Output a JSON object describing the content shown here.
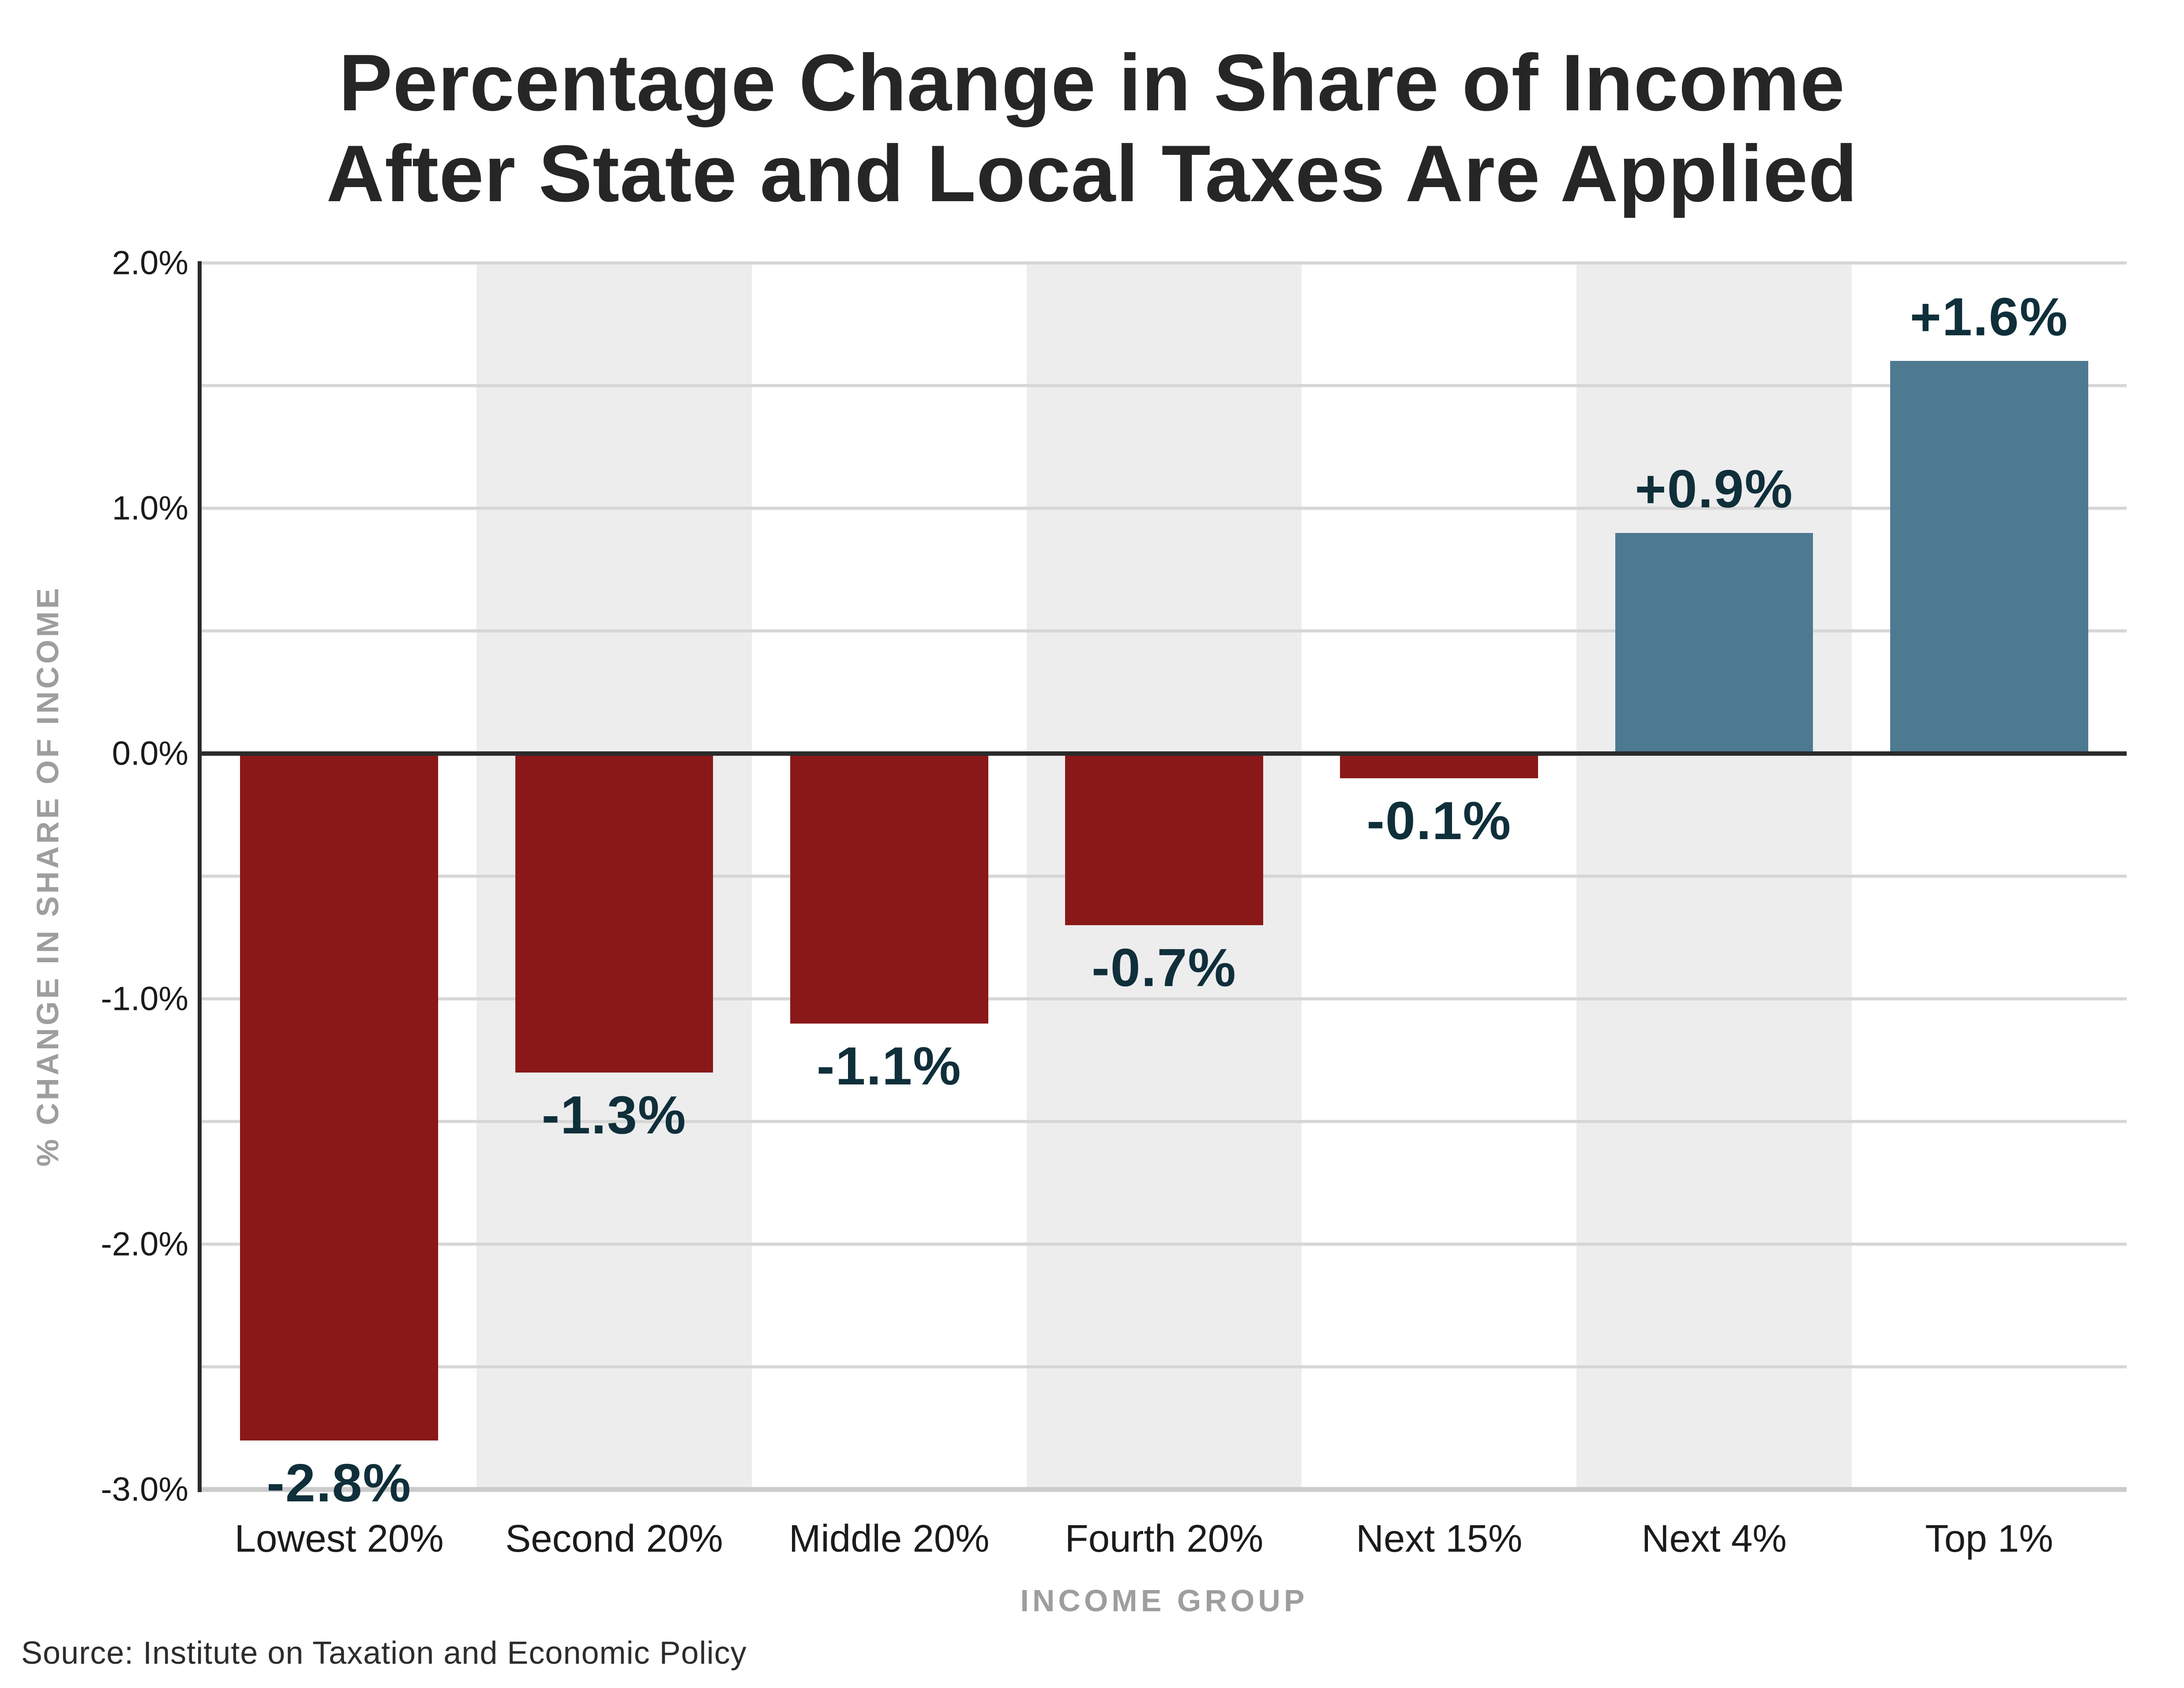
{
  "title": {
    "line1": "Percentage Change in Share of Income",
    "line2": "After State and Local Taxes Are Applied"
  },
  "source": "Source: Institute on Taxation and Economic Policy",
  "chart_data": {
    "type": "bar",
    "title": "Percentage Change in Share of Income After State and Local Taxes Are Applied",
    "categories": [
      "Lowest 20%",
      "Second 20%",
      "Middle 20%",
      "Fourth 20%",
      "Next 15%",
      "Next 4%",
      "Top 1%"
    ],
    "values": [
      -2.8,
      -1.3,
      -1.1,
      -0.7,
      -0.1,
      0.9,
      1.6
    ],
    "bar_labels": [
      "-2.8%",
      "-1.3%",
      "-1.1%",
      "-0.7%",
      "-0.1%",
      "+0.9%",
      "+1.6%"
    ],
    "xlabel": "INCOME GROUP",
    "ylabel": "% CHANGE IN SHARE OF INCOME",
    "ylim": [
      -3.0,
      2.0
    ],
    "gridline_step": 0.5,
    "grid": "on",
    "legend_position": "none",
    "ytick_labels": [
      "2.0%",
      "1.0%",
      "0.0%",
      "-1.0%",
      "-2.0%",
      "-3.0%"
    ],
    "ytick_values": [
      2.0,
      1.0,
      0.0,
      -1.0,
      -2.0,
      -3.0
    ],
    "striped_columns": [
      1,
      3,
      5
    ],
    "colors": {
      "negative_bar": "#8a1818",
      "positive_bar": "#4d7a90",
      "data_label": "#0f2f3a",
      "column_band": "#ededee",
      "gridline": "#d6d6d6",
      "zero_line": "#2b2b2b",
      "axis_spine": "#2b2b2b",
      "axis_title_gray": "#9e9e9e",
      "title_text": "#262626"
    }
  }
}
